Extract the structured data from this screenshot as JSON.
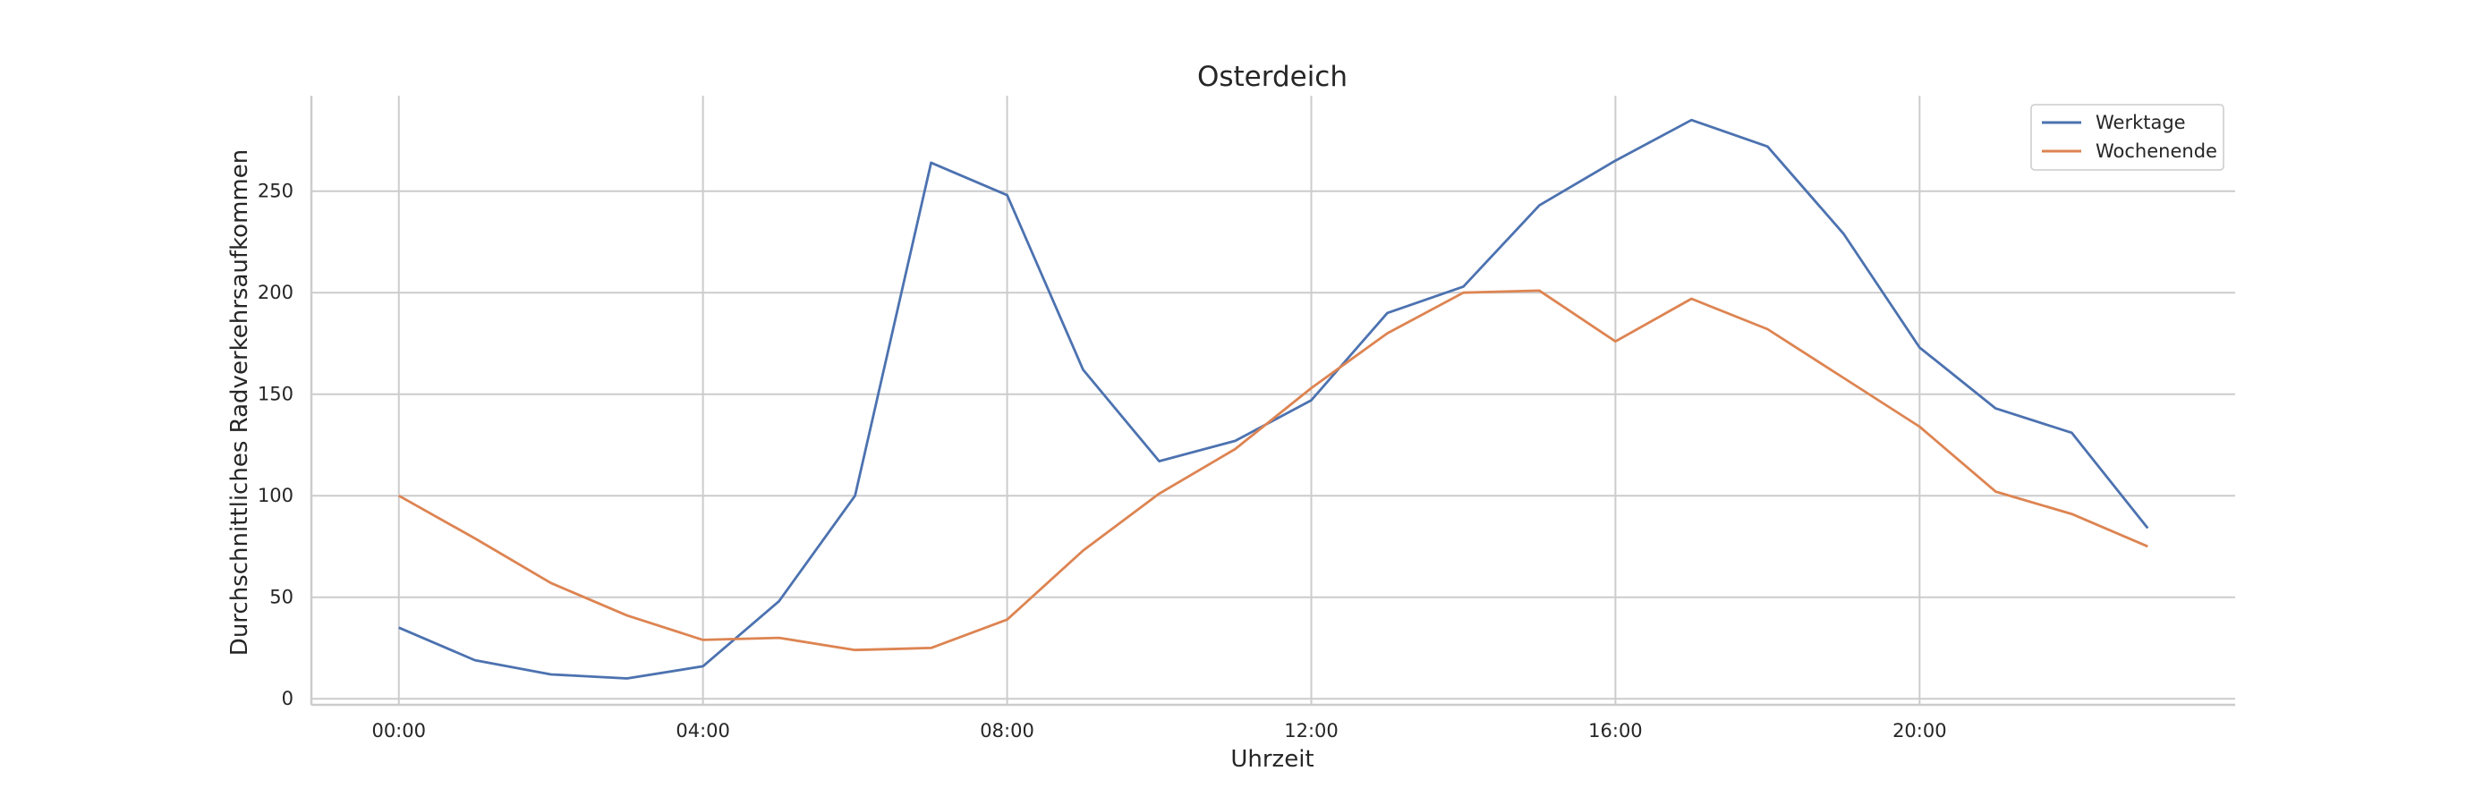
{
  "chart_data": {
    "type": "line",
    "title": "Osterdeich",
    "xlabel": "Uhrzeit",
    "ylabel": "Durchschnittliches Radverkehrsaufkommen",
    "x": [
      0,
      1,
      2,
      3,
      4,
      5,
      6,
      7,
      8,
      9,
      10,
      11,
      12,
      13,
      14,
      15,
      16,
      17,
      18,
      19,
      20,
      21,
      22,
      23
    ],
    "xlim": [
      -1.15,
      24.15
    ],
    "ylim": [
      -3,
      297
    ],
    "xticks": [
      0,
      4,
      8,
      12,
      16,
      20
    ],
    "xtick_labels": [
      "00:00",
      "04:00",
      "08:00",
      "12:00",
      "16:00",
      "20:00"
    ],
    "yticks": [
      0,
      50,
      100,
      150,
      200,
      250
    ],
    "ytick_labels": [
      "0",
      "50",
      "100",
      "150",
      "200",
      "250"
    ],
    "grid": true,
    "legend_position": "top-right",
    "series": [
      {
        "name": "Werktage",
        "color": "#4c72b0",
        "values": [
          35,
          19,
          12,
          10,
          16,
          48,
          100,
          264,
          248,
          162,
          117,
          127,
          147,
          190,
          203,
          243,
          265,
          285,
          272,
          229,
          173,
          143,
          131,
          84
        ]
      },
      {
        "name": "Wochenende",
        "color": "#dd8452",
        "values": [
          100,
          79,
          57,
          41,
          29,
          30,
          24,
          25,
          39,
          73,
          101,
          123,
          153,
          180,
          200,
          201,
          176,
          197,
          182,
          158,
          134,
          102,
          91,
          75
        ]
      }
    ]
  }
}
